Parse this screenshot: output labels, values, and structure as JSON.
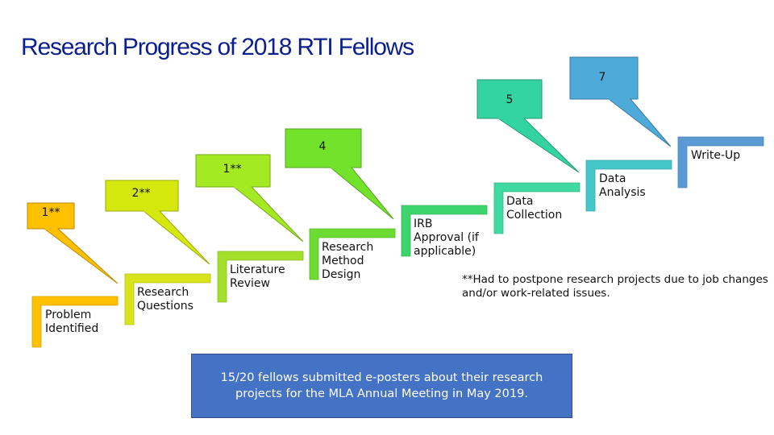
{
  "title": "Research Progress of 2018 RTI Fellows",
  "steps": [
    {
      "label": "Problem Identified",
      "color": "#ffc000"
    },
    {
      "label": "Research Questions",
      "color": "#d7e41c"
    },
    {
      "label": "Literature Review",
      "color": "#a4df2c"
    },
    {
      "label": "Research Method Design",
      "color": "#6cdb32"
    },
    {
      "label": "IRB Approval (if applicable)",
      "color": "#3cd46c"
    },
    {
      "label": "Data Collection",
      "color": "#41d9a3"
    },
    {
      "label": "Data Analysis",
      "color": "#45c6c8"
    },
    {
      "label": "Write-Up",
      "color": "#5b9bd5"
    }
  ],
  "callouts": [
    {
      "text": "1**",
      "color": "#ffc000"
    },
    {
      "text": "2**",
      "color": "#d4e80e"
    },
    {
      "text": "1**",
      "color": "#a3ea23"
    },
    {
      "text": "4",
      "color": "#72e32a"
    },
    {
      "text": "5",
      "color": "#33d4a0"
    },
    {
      "text": "7",
      "color": "#4eaad8"
    }
  ],
  "footnote": "**Had to postpone research projects due to job changes and/or work-related issues.",
  "summary": "15/20 fellows submitted e-posters about their research projects for the MLA Annual Meeting in May 2019."
}
